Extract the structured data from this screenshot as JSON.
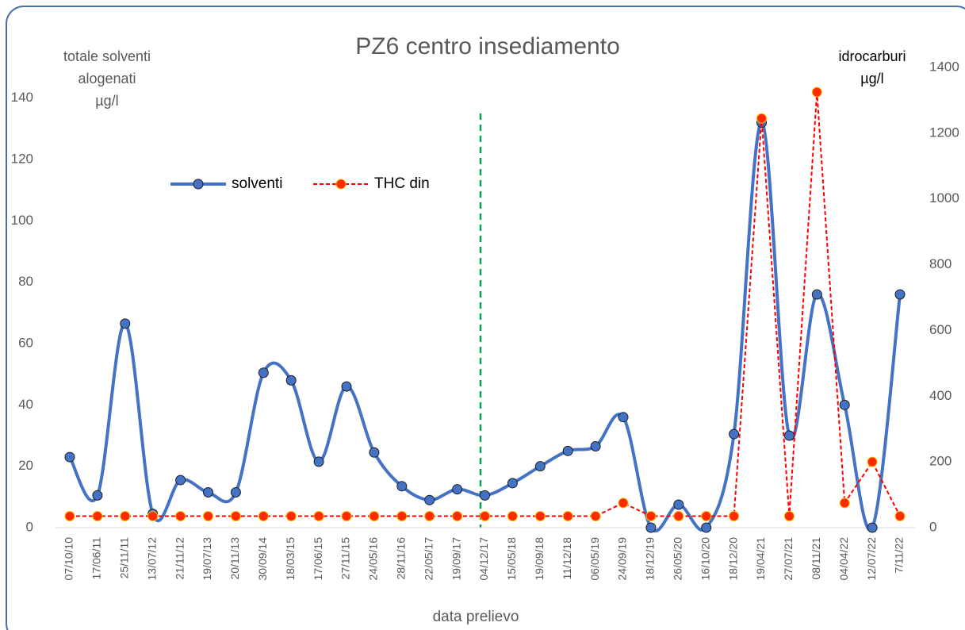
{
  "chart_data": {
    "type": "line",
    "title": "PZ6 centro insediamento",
    "x_label": "data prelievo",
    "y_label": [
      "totale solventi",
      "alogenati",
      "µg/l"
    ],
    "y2_label": [
      "idrocarburi",
      "µg/l"
    ],
    "categories": [
      "07/10/10",
      "17/06/11",
      "25/11/11",
      "13/07/12",
      "21/11/12",
      "19/07/13",
      "20/11/13",
      "30/09/14",
      "18/03/15",
      "17/06/15",
      "27/11/15",
      "24/05/16",
      "28/11/16",
      "22/05/17",
      "19/09/17",
      "04/12/17",
      "15/05/18",
      "19/09/18",
      "11/12/18",
      "06/05/19",
      "24/09/19",
      "18/12/19",
      "26/05/20",
      "16/10/20",
      "18/12/20",
      "19/04/21",
      "27/07/21",
      "08/11/21",
      "04/04/22",
      "12/07/22",
      "7/11/22"
    ],
    "series": [
      {
        "name": "solventi",
        "color": "#4472c4",
        "smooth": true,
        "values": [
          23,
          10.5,
          66.5,
          4.5,
          15.5,
          11.5,
          11.5,
          50.5,
          48,
          21.5,
          46,
          24.5,
          13.5,
          9,
          12.5,
          10.5,
          14.5,
          20,
          25,
          26.5,
          36,
          0,
          7.5,
          0,
          30.5,
          132,
          30,
          76,
          40,
          0,
          76
        ]
      },
      {
        "name": "THC din",
        "color": "#ff0000",
        "axis": "y2",
        "dashed": true,
        "values": [
          35,
          35,
          35,
          35,
          35,
          35,
          35,
          35,
          35,
          35,
          35,
          35,
          35,
          35,
          35,
          35,
          35,
          35,
          35,
          35,
          75,
          35,
          35,
          35,
          35,
          1245,
          35,
          1325,
          75,
          200,
          35
        ]
      }
    ],
    "ylim": [
      0,
      150
    ],
    "yticks": [
      0,
      20,
      40,
      60,
      80,
      100,
      120,
      140
    ],
    "y2lim": [
      0,
      1400
    ],
    "y2ticks": [
      0,
      200,
      400,
      600,
      800,
      1000,
      1200,
      1400
    ],
    "legend": "top-left"
  }
}
